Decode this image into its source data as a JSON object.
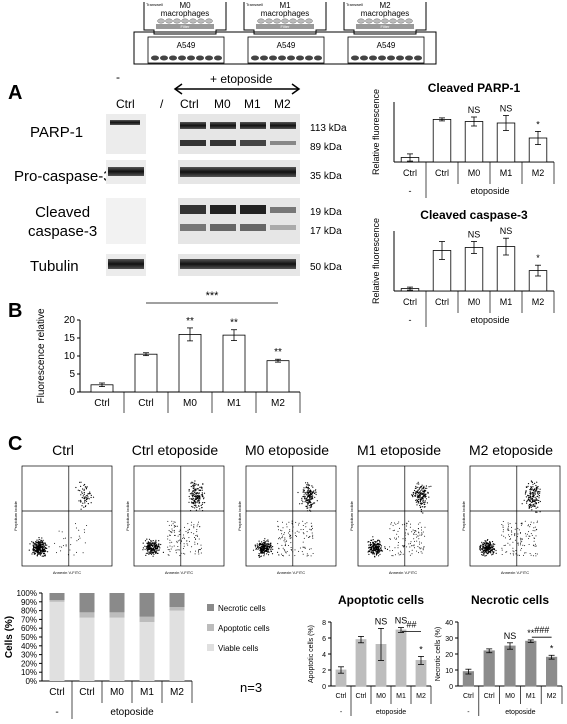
{
  "schematic": {
    "wells": [
      {
        "insert": "M0 macrophages",
        "filter": "Filter",
        "bottom": "A549",
        "transwell": "Transwell"
      },
      {
        "insert": "M1 macrophages",
        "filter": "Filter",
        "bottom": "A549",
        "transwell": "Transwell"
      },
      {
        "insert": "M2 macrophages",
        "filter": "Filter",
        "bottom": "A549",
        "transwell": "Transwell"
      }
    ]
  },
  "panelA": {
    "letter": "A",
    "minus": "-",
    "treatment": "+ etoposide",
    "slash": "/",
    "lanes": [
      "Ctrl",
      "Ctrl",
      "M0",
      "M1",
      "M2"
    ],
    "blots": [
      {
        "name": "PARP-1",
        "kda": [
          "113 kDa",
          "89 kDa"
        ]
      },
      {
        "name": "Pro-caspase-3",
        "kda": [
          "35 kDa"
        ]
      },
      {
        "name": "Cleaved\ncaspase-3",
        "kda": [
          "19 kDa",
          "17 kDa"
        ]
      },
      {
        "name": "Tubulin",
        "kda": [
          "50 kDa"
        ]
      }
    ]
  },
  "panelB": {
    "letter": "B"
  },
  "panelC": {
    "letter": "C",
    "flow_titles": [
      "Ctrl",
      "Ctrl etoposide",
      "M0 etoposide",
      "M1 etoposide",
      "M2 etoposide"
    ],
    "flow_xlabel": "Annexin V-FITC",
    "flow_ylabel": "Propidium iodide",
    "n_label": "n=3"
  },
  "chart_data": [
    {
      "id": "cleaved-parp1",
      "type": "bar",
      "title": "Cleaved PARP-1",
      "ylabel": "Relative fluorescence",
      "categories": [
        "Ctrl",
        "Ctrl",
        "M0",
        "M1",
        "M2"
      ],
      "group_labels": [
        "-",
        "etoposide"
      ],
      "values": [
        15,
        142,
        135,
        130,
        80
      ],
      "errors": [
        12,
        5,
        15,
        25,
        22
      ],
      "annotations": [
        "",
        "",
        "NS",
        "NS",
        "*"
      ],
      "ylim": [
        0,
        200
      ]
    },
    {
      "id": "cleaved-casp3",
      "type": "bar",
      "title": "Cleaved caspase-3",
      "ylabel": "Relative fluorescence",
      "categories": [
        "Ctrl",
        "Ctrl",
        "M0",
        "M1",
        "M2"
      ],
      "group_labels": [
        "-",
        "etoposide"
      ],
      "values": [
        8,
        135,
        145,
        148,
        68
      ],
      "errors": [
        5,
        30,
        20,
        28,
        18
      ],
      "annotations": [
        "",
        "",
        "NS",
        "NS",
        "*"
      ],
      "ylim": [
        0,
        200
      ]
    },
    {
      "id": "fluorescence-b",
      "type": "bar",
      "ylabel": "Fluorescence relative",
      "categories": [
        "Ctrl",
        "Ctrl",
        "M0",
        "M1",
        "M2"
      ],
      "group_labels": [
        "-",
        "etoposide"
      ],
      "values": [
        2,
        10.5,
        16,
        15.8,
        8.7
      ],
      "errors": [
        0.5,
        0.4,
        1.8,
        1.5,
        0.4
      ],
      "annotations": [
        "",
        "",
        "**",
        "**",
        "**"
      ],
      "bracket_label": "***",
      "ylim": [
        0,
        20
      ],
      "yticks": [
        0,
        5,
        10,
        15,
        20
      ]
    },
    {
      "id": "stacked-cells",
      "type": "bar",
      "ylabel": "Cells (%)",
      "categories": [
        "Ctrl",
        "Ctrl",
        "M0",
        "M1",
        "M2"
      ],
      "group_labels": [
        "-",
        "etoposide"
      ],
      "series": [
        {
          "name": "Viable cells",
          "values": [
            90,
            72,
            72,
            67,
            80
          ]
        },
        {
          "name": "Apoptotic cells",
          "values": [
            2,
            6,
            6,
            6,
            4
          ]
        },
        {
          "name": "Necrotic cells",
          "values": [
            8,
            22,
            22,
            27,
            16
          ]
        }
      ],
      "yticks": [
        "0%",
        "10%",
        "20%",
        "30%",
        "40%",
        "50%",
        "60%",
        "70%",
        "80%",
        "90%",
        "100%"
      ],
      "ylim": [
        0,
        100
      ]
    },
    {
      "id": "apoptotic-cells",
      "type": "bar",
      "title": "Apoptotic cells",
      "ylabel": "Apoptotic cells (%)",
      "categories": [
        "Ctrl",
        "Ctrl",
        "M0",
        "M1",
        "M2"
      ],
      "group_labels": [
        "-",
        "etoposide"
      ],
      "values": [
        2,
        5.8,
        5.2,
        7,
        3.2
      ],
      "errors": [
        0.4,
        0.4,
        2.0,
        0.3,
        0.5
      ],
      "annotations": [
        "",
        "",
        "NS",
        "NS",
        "*"
      ],
      "bracket_label": "##",
      "ylim": [
        0,
        8
      ],
      "yticks": [
        0,
        2,
        4,
        6,
        8
      ]
    },
    {
      "id": "necrotic-cells",
      "type": "bar",
      "title": "Necrotic cells",
      "ylabel": "Necrotic cells (%)",
      "categories": [
        "Ctrl",
        "Ctrl",
        "M0",
        "M1",
        "M2"
      ],
      "group_labels": [
        "-",
        "etoposide"
      ],
      "values": [
        9,
        22,
        25,
        28,
        18
      ],
      "errors": [
        1.5,
        1.2,
        2.0,
        0.8,
        1.2
      ],
      "annotations": [
        "",
        "",
        "NS",
        "**",
        "*"
      ],
      "bracket_label": "###",
      "ylim": [
        0,
        40
      ],
      "yticks": [
        0,
        10,
        20,
        30,
        40
      ]
    }
  ]
}
